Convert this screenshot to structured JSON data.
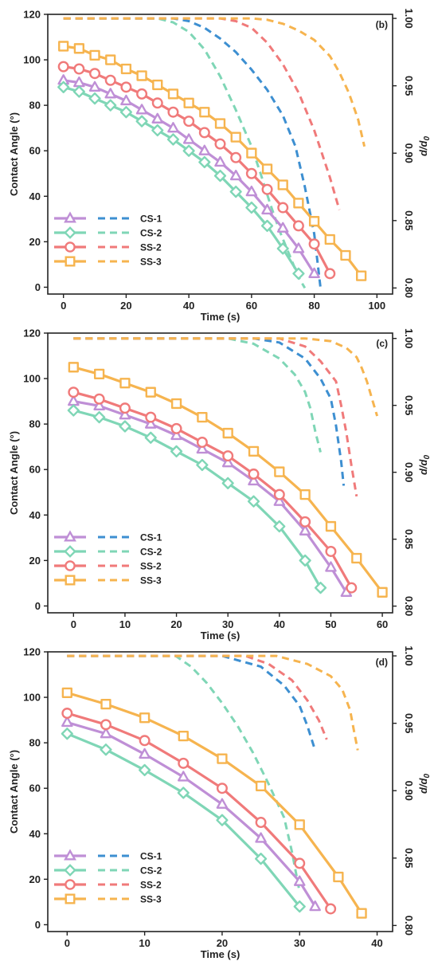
{
  "series_styles": [
    {
      "key": "CS-1",
      "color": "#bf8fd6",
      "marker": "triangle",
      "dash_color": "#3d8fd1"
    },
    {
      "key": "CS-2",
      "color": "#7fd6b6",
      "marker": "diamond",
      "dash_color": "#7fd6b6"
    },
    {
      "key": "SS-2",
      "color": "#f07a7a",
      "marker": "circle",
      "dash_color": "#f07a7a"
    },
    {
      "key": "SS-3",
      "color": "#f6b44f",
      "marker": "square",
      "dash_color": "#f6b44f"
    }
  ],
  "chart_data": [
    {
      "type": "line",
      "panel": "(b)",
      "xlabel": "Time (s)",
      "ylabel": "Contact Angle (°)",
      "y2label": "d/d",
      "y2label_sub": "0",
      "xlim": [
        -5,
        105
      ],
      "ylim": [
        -3,
        120
      ],
      "y2lim": [
        0.7955,
        1.003
      ],
      "xticks": [
        0,
        20,
        40,
        60,
        80,
        100
      ],
      "yticks": [
        0,
        20,
        40,
        60,
        80,
        100,
        120
      ],
      "y2ticks": [
        0.8,
        0.85,
        0.9,
        0.95,
        1.0
      ],
      "legend": [
        "CS-1",
        "CS-2",
        "SS-2",
        "SS-3"
      ],
      "series": [
        {
          "name": "CS-1",
          "x": [
            0,
            5,
            10,
            15,
            20,
            25,
            30,
            35,
            40,
            45,
            50,
            55,
            60,
            65,
            70,
            75,
            80
          ],
          "y": [
            91,
            90,
            88,
            85,
            82,
            78,
            74,
            70,
            65,
            60,
            55,
            49,
            42,
            34,
            26,
            17,
            6
          ]
        },
        {
          "name": "CS-2",
          "x": [
            0,
            5,
            10,
            15,
            20,
            25,
            30,
            35,
            40,
            45,
            50,
            55,
            60,
            65,
            70,
            75
          ],
          "y": [
            88,
            86,
            83,
            80,
            77,
            73,
            69,
            65,
            60,
            55,
            49,
            42,
            35,
            27,
            17,
            6
          ]
        },
        {
          "name": "SS-2",
          "x": [
            0,
            5,
            10,
            15,
            20,
            25,
            30,
            35,
            40,
            45,
            50,
            55,
            60,
            65,
            70,
            75,
            80,
            85
          ],
          "y": [
            97,
            96,
            94,
            91,
            88,
            85,
            81,
            77,
            73,
            68,
            63,
            57,
            50,
            43,
            35,
            27,
            19,
            6
          ]
        },
        {
          "name": "SS-3",
          "x": [
            0,
            5,
            10,
            15,
            20,
            25,
            30,
            35,
            40,
            45,
            50,
            55,
            60,
            65,
            70,
            75,
            80,
            85,
            90,
            95
          ],
          "y": [
            106,
            105,
            102,
            100,
            96,
            93,
            89,
            85,
            81,
            77,
            72,
            66,
            59,
            52,
            45,
            37,
            29,
            21,
            14,
            5
          ]
        }
      ],
      "dashed_series": [
        {
          "name": "CS-1",
          "x": [
            0,
            35,
            40,
            45,
            50,
            55,
            60,
            65,
            70,
            74,
            77,
            80,
            82
          ],
          "y": [
            1.0,
            1.0,
            0.998,
            0.993,
            0.985,
            0.975,
            0.962,
            0.947,
            0.928,
            0.905,
            0.875,
            0.84,
            0.8
          ]
        },
        {
          "name": "CS-2",
          "x": [
            0,
            30,
            35,
            40,
            45,
            50,
            55,
            60,
            63,
            66,
            69,
            72,
            75,
            77
          ],
          "y": [
            1.0,
            1.0,
            0.997,
            0.99,
            0.977,
            0.957,
            0.932,
            0.905,
            0.884,
            0.862,
            0.842,
            0.825,
            0.808,
            0.8
          ]
        },
        {
          "name": "SS-2",
          "x": [
            0,
            50,
            55,
            60,
            65,
            70,
            75,
            80,
            85,
            88
          ],
          "y": [
            1.0,
            1.0,
            0.998,
            0.993,
            0.982,
            0.966,
            0.945,
            0.917,
            0.882,
            0.858
          ]
        },
        {
          "name": "SS-3",
          "x": [
            0,
            60,
            65,
            70,
            75,
            80,
            85,
            88,
            91,
            94,
            96
          ],
          "y": [
            1.0,
            1.0,
            0.999,
            0.996,
            0.991,
            0.984,
            0.972,
            0.96,
            0.945,
            0.925,
            0.905
          ]
        }
      ]
    },
    {
      "type": "line",
      "panel": "(c)",
      "xlabel": "Time (s)",
      "ylabel": "Contact Angle (°)",
      "y2label": "d/d",
      "y2label_sub": "0",
      "xlim": [
        -5,
        62
      ],
      "ylim": [
        -3,
        120
      ],
      "y2lim": [
        0.795,
        1.004
      ],
      "xticks": [
        0,
        10,
        20,
        30,
        40,
        50,
        60
      ],
      "yticks": [
        0,
        20,
        40,
        60,
        80,
        100,
        120
      ],
      "y2ticks": [
        0.8,
        0.85,
        0.9,
        0.95,
        1.0
      ],
      "legend": [
        "CS-1",
        "CS-2",
        "SS-2",
        "SS-3"
      ],
      "series": [
        {
          "name": "CS-1",
          "x": [
            0,
            5,
            10,
            15,
            20,
            25,
            30,
            35,
            40,
            45,
            50,
            53
          ],
          "y": [
            90,
            88,
            84,
            80,
            75,
            69,
            63,
            55,
            46,
            33,
            17,
            6
          ]
        },
        {
          "name": "CS-2",
          "x": [
            0,
            5,
            10,
            15,
            20,
            25,
            30,
            35,
            40,
            45,
            48
          ],
          "y": [
            86,
            83,
            79,
            74,
            68,
            62,
            54,
            46,
            35,
            20,
            8
          ]
        },
        {
          "name": "SS-2",
          "x": [
            0,
            5,
            10,
            15,
            20,
            25,
            30,
            35,
            40,
            45,
            50,
            54
          ],
          "y": [
            94,
            91,
            87,
            83,
            78,
            72,
            66,
            58,
            49,
            37,
            24,
            8
          ]
        },
        {
          "name": "SS-3",
          "x": [
            0,
            5,
            10,
            15,
            20,
            25,
            30,
            35,
            40,
            45,
            50,
            55,
            60
          ],
          "y": [
            105,
            102,
            98,
            94,
            89,
            83,
            76,
            68,
            59,
            49,
            35,
            21,
            6
          ]
        }
      ],
      "dashed_series": [
        {
          "name": "CS-1",
          "x": [
            0,
            35,
            40,
            45,
            48,
            50,
            51,
            52,
            52.5
          ],
          "y": [
            1.0,
            1.0,
            0.997,
            0.985,
            0.97,
            0.955,
            0.935,
            0.908,
            0.89
          ]
        },
        {
          "name": "CS-2",
          "x": [
            0,
            30,
            35,
            40,
            43,
            45,
            46,
            47,
            48
          ],
          "y": [
            1.0,
            1.0,
            0.996,
            0.985,
            0.973,
            0.96,
            0.948,
            0.93,
            0.915
          ]
        },
        {
          "name": "SS-2",
          "x": [
            0,
            40,
            45,
            48,
            51,
            52,
            53,
            54,
            55
          ],
          "y": [
            1.0,
            1.0,
            0.994,
            0.983,
            0.968,
            0.95,
            0.93,
            0.905,
            0.882
          ]
        },
        {
          "name": "SS-3",
          "x": [
            0,
            45,
            50,
            53,
            55,
            56,
            57,
            58,
            59
          ],
          "y": [
            1.0,
            1.0,
            0.998,
            0.993,
            0.986,
            0.978,
            0.968,
            0.955,
            0.942
          ]
        }
      ]
    },
    {
      "type": "line",
      "panel": "(d)",
      "xlabel": "Time (s)",
      "ylabel": "Contact Angle (°)",
      "y2label": "d/d",
      "y2label_sub": "0",
      "xlim": [
        -2.5,
        42
      ],
      "ylim": [
        -3,
        120
      ],
      "y2lim": [
        0.7955,
        1.003
      ],
      "xticks": [
        0,
        10,
        20,
        30,
        40
      ],
      "yticks": [
        0,
        20,
        40,
        60,
        80,
        100,
        120
      ],
      "y2ticks": [
        0.8,
        0.85,
        0.9,
        0.95,
        1.0
      ],
      "legend": [
        "CS-1",
        "CS-2",
        "SS-2",
        "SS-3"
      ],
      "series": [
        {
          "name": "CS-1",
          "x": [
            0,
            5,
            10,
            15,
            20,
            25,
            30,
            32
          ],
          "y": [
            89,
            84,
            75,
            65,
            53,
            38,
            19,
            8
          ]
        },
        {
          "name": "CS-2",
          "x": [
            0,
            5,
            10,
            15,
            20,
            25,
            30
          ],
          "y": [
            84,
            77,
            68,
            58,
            46,
            29,
            8
          ]
        },
        {
          "name": "SS-2",
          "x": [
            0,
            5,
            10,
            15,
            20,
            25,
            30,
            34
          ],
          "y": [
            93,
            88,
            81,
            71,
            60,
            45,
            27,
            7
          ]
        },
        {
          "name": "SS-3",
          "x": [
            0,
            5,
            10,
            15,
            20,
            25,
            30,
            35,
            38
          ],
          "y": [
            102,
            97,
            91,
            83,
            73,
            61,
            44,
            21,
            5
          ]
        }
      ],
      "dashed_series": [
        {
          "name": "CS-1",
          "x": [
            0,
            20,
            25,
            28,
            30,
            31,
            32
          ],
          "y": [
            1.0,
            1.0,
            0.992,
            0.978,
            0.963,
            0.948,
            0.93
          ]
        },
        {
          "name": "CS-2",
          "x": [
            0,
            14,
            16,
            18,
            20,
            22,
            24,
            26,
            28,
            29,
            30
          ],
          "y": [
            1.0,
            1.0,
            0.992,
            0.98,
            0.965,
            0.948,
            0.928,
            0.905,
            0.88,
            0.855,
            0.825
          ]
        },
        {
          "name": "SS-2",
          "x": [
            0,
            23,
            26,
            29,
            31,
            32.5,
            33.5
          ],
          "y": [
            1.0,
            1.0,
            0.994,
            0.982,
            0.967,
            0.952,
            0.938
          ]
        },
        {
          "name": "SS-3",
          "x": [
            0,
            27,
            31,
            34,
            35.5,
            36.5,
            37,
            37.5
          ],
          "y": [
            1.0,
            1.0,
            0.994,
            0.985,
            0.975,
            0.96,
            0.945,
            0.93
          ]
        }
      ]
    }
  ]
}
